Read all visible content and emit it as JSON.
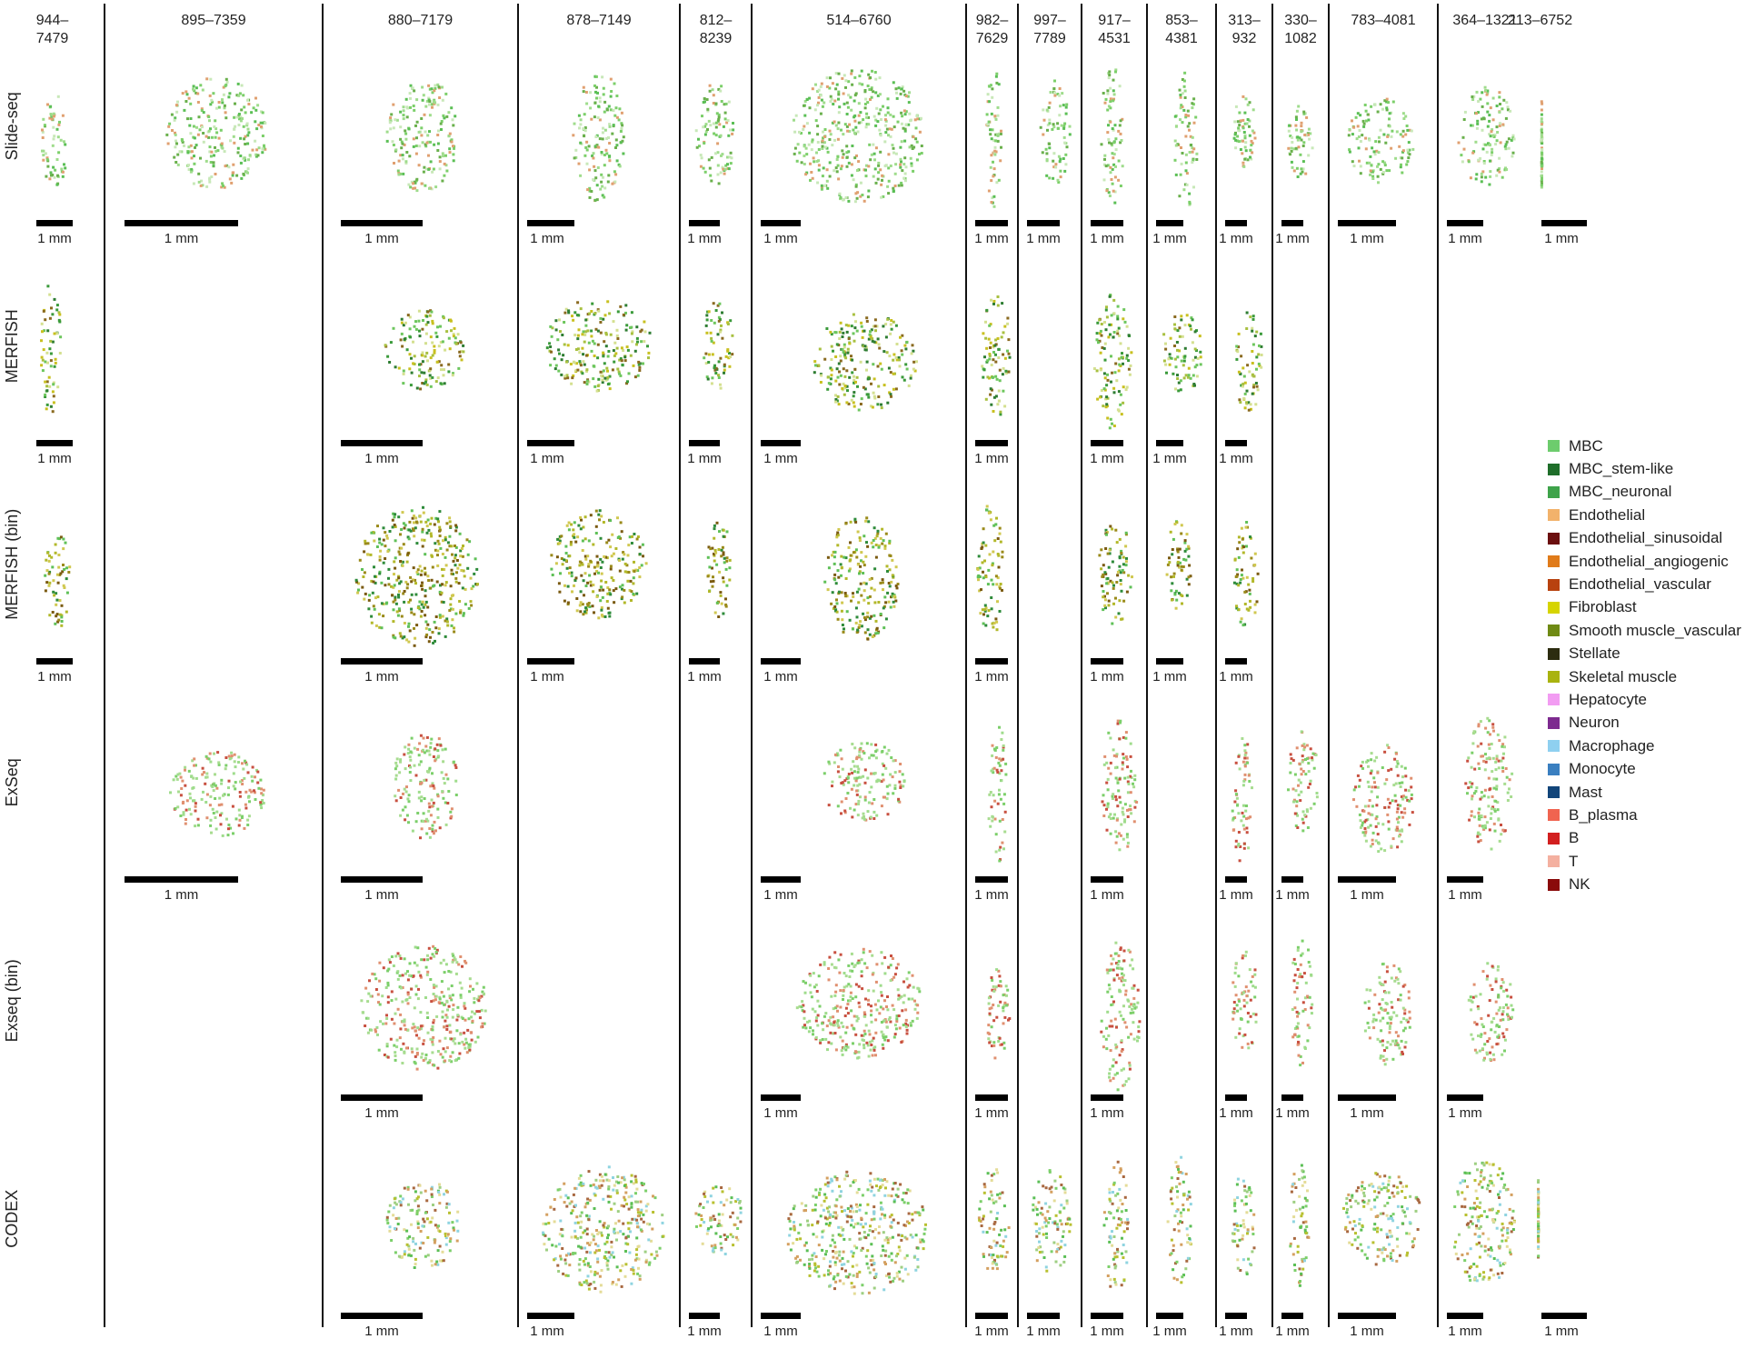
{
  "samples": [
    {
      "label": [
        "944–",
        "7479"
      ]
    },
    {
      "label": [
        "895–7359"
      ]
    },
    {
      "label": [
        "880–7179"
      ]
    },
    {
      "label": [
        "878–7149"
      ]
    },
    {
      "label": [
        "812–",
        "8239"
      ]
    },
    {
      "label": [
        "514–6760"
      ]
    },
    {
      "label": [
        "982–",
        "7629"
      ]
    },
    {
      "label": [
        "997–",
        "7789"
      ]
    },
    {
      "label": [
        "917–",
        "4531"
      ]
    },
    {
      "label": [
        "853–",
        "4381"
      ]
    },
    {
      "label": [
        "313–",
        "932"
      ]
    },
    {
      "label": [
        "330–",
        "1082"
      ]
    },
    {
      "label": [
        "783–4081"
      ]
    },
    {
      "label": [
        "364–1321"
      ]
    },
    {
      "label": [
        "213–6752"
      ]
    }
  ],
  "modalities": [
    "Slide-seq",
    "MERFISH",
    "MERFISH (bin)",
    "ExSeq",
    "Exseq (bin)",
    "CODEX"
  ],
  "scale_bar_label": "1 mm",
  "presence": [
    [
      1,
      1,
      1,
      1,
      1,
      1,
      1,
      1,
      1,
      1,
      1,
      1,
      1,
      1,
      1
    ],
    [
      1,
      0,
      1,
      1,
      1,
      1,
      1,
      0,
      1,
      1,
      1,
      0,
      0,
      0,
      0
    ],
    [
      1,
      0,
      1,
      1,
      1,
      1,
      1,
      0,
      1,
      1,
      1,
      0,
      0,
      0,
      0
    ],
    [
      0,
      1,
      1,
      0,
      0,
      1,
      1,
      0,
      1,
      0,
      1,
      1,
      1,
      1,
      0
    ],
    [
      0,
      0,
      1,
      0,
      0,
      1,
      1,
      0,
      1,
      0,
      1,
      1,
      1,
      1,
      0
    ],
    [
      0,
      0,
      1,
      1,
      1,
      1,
      1,
      1,
      1,
      1,
      1,
      1,
      1,
      1,
      1
    ]
  ],
  "tissue_palette": {
    "Slide-seq": [
      "#7ccf6a",
      "#9fdc8c",
      "#5bbf55",
      "#c8e8b8",
      "#e0a070",
      "#6ab04c"
    ],
    "MERFISH": [
      "#6dc65d",
      "#a8c040",
      "#3a9a3a",
      "#c8c020",
      "#8a6a20",
      "#2e7d32",
      "#d4e090"
    ],
    "MERFISH (bin)": [
      "#5fc057",
      "#b2b82a",
      "#9a8a1a",
      "#2e8b3a",
      "#d0c850",
      "#7a5a10"
    ],
    "ExSeq": [
      "#7ccf6a",
      "#a8dc90",
      "#e09070",
      "#c85040",
      "#9fdc8c"
    ],
    "Exseq (bin)": [
      "#7ccf6a",
      "#a8dc90",
      "#e09070",
      "#c85040",
      "#9fdc8c"
    ],
    "CODEX": [
      "#7ccf6a",
      "#b8c030",
      "#9ecf82",
      "#d4a060",
      "#8fd4e0",
      "#a86840",
      "#e4dc98",
      "#5bbf55"
    ]
  },
  "legend": [
    {
      "label": "MBC",
      "color": "#6dcc6d"
    },
    {
      "label": "MBC_stem-like",
      "color": "#1f6e2a"
    },
    {
      "label": "MBC_neuronal",
      "color": "#3ea34a"
    },
    {
      "label": "Endothelial",
      "color": "#f2b26b"
    },
    {
      "label": "Endothelial_sinusoidal",
      "color": "#6b0f0f"
    },
    {
      "label": "Endothelial_angiogenic",
      "color": "#e07b1a"
    },
    {
      "label": "Endothelial_vascular",
      "color": "#b8420f"
    },
    {
      "label": "Fibroblast",
      "color": "#d6d400"
    },
    {
      "label": "Smooth muscle_vascular",
      "color": "#6f8a14"
    },
    {
      "label": "Stellate",
      "color": "#2c2c10"
    },
    {
      "label": "Skeletal muscle",
      "color": "#a9b30f"
    },
    {
      "label": "Hepatocyte",
      "color": "#f29cf2"
    },
    {
      "label": "Neuron",
      "color": "#7d2a8f"
    },
    {
      "label": "Macrophage",
      "color": "#8fd0f0"
    },
    {
      "label": "Monocyte",
      "color": "#3a7fc0"
    },
    {
      "label": "Mast",
      "color": "#12457a"
    },
    {
      "label": "B_plasma",
      "color": "#f06450"
    },
    {
      "label": "B",
      "color": "#d21f1f"
    },
    {
      "label": "T",
      "color": "#f4b0a0"
    },
    {
      "label": "NK",
      "color": "#8a0a0a"
    }
  ]
}
